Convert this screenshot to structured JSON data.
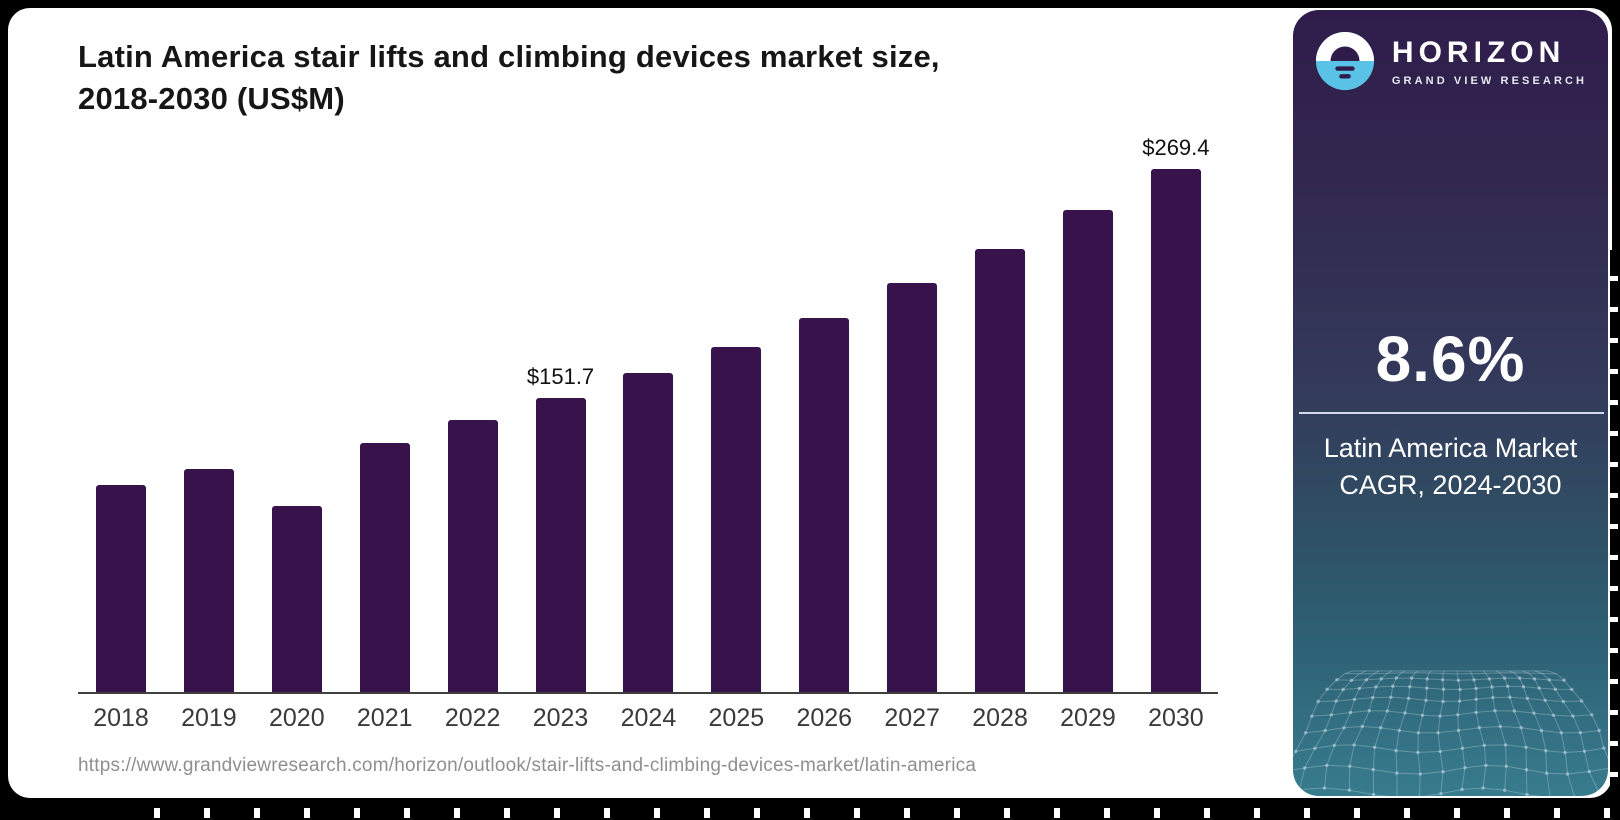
{
  "header": {
    "title_line1": "Latin America stair lifts and climbing devices market size,",
    "title_line2": "2018-2030 (US$M)"
  },
  "chart_data": {
    "type": "bar",
    "title": "Latin America stair lifts and climbing devices market size, 2018-2030 (US$M)",
    "categories": [
      "2018",
      "2019",
      "2020",
      "2021",
      "2022",
      "2023",
      "2024",
      "2025",
      "2026",
      "2027",
      "2028",
      "2029",
      "2030"
    ],
    "values": [
      107.0,
      115.2,
      96.2,
      128.6,
      140.4,
      151.7,
      164.6,
      177.9,
      192.9,
      210.9,
      228.3,
      248.4,
      269.4
    ],
    "bar_labels": [
      "",
      "",
      "",
      "",
      "",
      "$151.7",
      "",
      "",
      "",
      "",
      "",
      "",
      "$269.4"
    ],
    "unit": "US$M",
    "xlabel": "",
    "ylabel": "",
    "ylim": [
      0,
      280
    ],
    "grid": false,
    "legend": "none",
    "bar_color": "#38124A"
  },
  "sidebar": {
    "logo": {
      "brand": "HORIZON",
      "sub_brand": "GRAND VIEW RESEARCH",
      "icon": "horizon-sunset-icon"
    },
    "stat": {
      "value": "8.6%",
      "label_line1": "Latin America Market",
      "label_line2": "CAGR, 2024-2030"
    }
  },
  "footer": {
    "source_url": "https://www.grandviewresearch.com/horizon/outlook/stair-lifts-and-climbing-devices-market/latin-america"
  },
  "colors": {
    "bar": "#38124A",
    "title_text": "#161616",
    "axis_text": "#3A3A3A",
    "url_text": "#8F8F8F",
    "sidebar_gradient_top": "#2F1C4B",
    "sidebar_gradient_bottom": "#377C8E",
    "logo_blue": "#5BC2E7",
    "logo_dark": "#2F1C4B",
    "sidebar_text": "#FFFFFF"
  }
}
